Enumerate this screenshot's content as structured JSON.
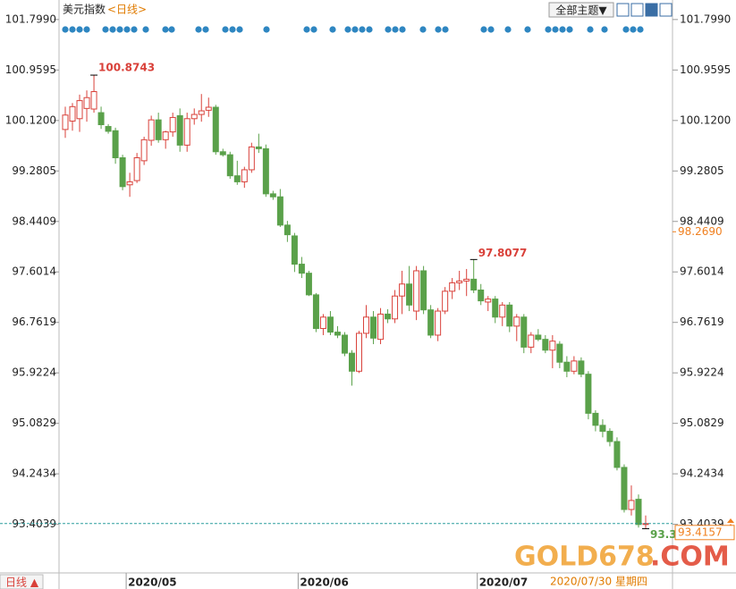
{
  "chart_data": {
    "type": "candlestick",
    "title": "美元指数",
    "subtitle": "<日线>",
    "categories": [
      null,
      null,
      null,
      null,
      null,
      null,
      null,
      null,
      null,
      "2020/05",
      null,
      null,
      null,
      null,
      null,
      null,
      null,
      null,
      null,
      null,
      null,
      null,
      null,
      null,
      null,
      null,
      null,
      null,
      null,
      null,
      null,
      null,
      null,
      "2020/06",
      null,
      null,
      null,
      null,
      null,
      null,
      null,
      null,
      null,
      null,
      null,
      null,
      null,
      null,
      null,
      null,
      null,
      null,
      null,
      null,
      null,
      null,
      null,
      null,
      "2020/07",
      null,
      null,
      null,
      null,
      null,
      null,
      null,
      null,
      null,
      null,
      null,
      null,
      null,
      null,
      null,
      null,
      null,
      null,
      null,
      null,
      null,
      null,
      null
    ],
    "open": [
      99.97,
      100.11,
      100.15,
      100.32,
      100.31,
      100.25,
      100.02,
      99.95,
      99.5,
      99.05,
      99.12,
      99.45,
      99.79,
      100.13,
      99.8,
      99.93,
      100.2,
      99.71,
      100.15,
      100.22,
      100.29,
      100.34,
      99.6,
      99.55,
      99.2,
      99.1,
      99.3,
      99.68,
      99.65,
      98.9,
      98.85,
      98.38,
      98.2,
      97.73,
      97.58,
      97.22,
      96.66,
      96.85,
      96.6,
      96.55,
      96.25,
      95.95,
      96.58,
      96.85,
      96.48,
      96.9,
      96.82,
      97.2,
      97.4,
      96.95,
      97.62,
      96.97,
      96.55,
      96.95,
      97.28,
      97.42,
      97.45,
      97.48,
      97.3,
      97.1,
      97.15,
      96.85,
      97.05,
      96.7,
      96.85,
      96.35,
      96.55,
      96.48,
      96.3,
      96.4,
      96.1,
      95.95,
      96.12,
      95.9,
      95.25,
      95.05,
      94.95,
      94.78,
      94.35,
      93.65,
      93.82,
      93.4
    ],
    "high": [
      100.35,
      100.41,
      100.55,
      100.62,
      100.8743,
      100.35,
      100.06,
      100.0,
      99.55,
      99.25,
      99.58,
      99.85,
      100.2,
      100.25,
      99.95,
      100.25,
      100.32,
      100.25,
      100.32,
      100.56,
      100.5,
      100.38,
      99.65,
      99.6,
      99.45,
      99.35,
      99.75,
      99.9,
      99.72,
      98.95,
      98.98,
      98.45,
      98.25,
      97.85,
      97.62,
      97.25,
      96.9,
      96.95,
      96.7,
      96.6,
      96.3,
      96.62,
      97.05,
      96.95,
      97.0,
      96.98,
      97.3,
      97.62,
      97.7,
      97.7,
      97.7,
      97.05,
      97.0,
      97.35,
      97.5,
      97.62,
      97.65,
      97.8077,
      97.4,
      97.2,
      97.2,
      97.1,
      97.1,
      96.9,
      96.9,
      96.6,
      96.65,
      96.55,
      96.55,
      96.45,
      96.2,
      96.2,
      96.18,
      95.95,
      95.3,
      95.15,
      95.0,
      94.85,
      94.4,
      94.05,
      93.9,
      93.55
    ],
    "low": [
      99.83,
      99.95,
      99.93,
      100.1,
      100.25,
      99.98,
      99.9,
      99.4,
      98.96,
      98.85,
      99.08,
      99.38,
      99.7,
      99.75,
      99.65,
      99.85,
      99.6,
      99.6,
      100.05,
      100.1,
      100.18,
      99.55,
      99.52,
      99.15,
      99.05,
      99.0,
      99.25,
      99.58,
      98.85,
      98.8,
      98.35,
      98.1,
      97.6,
      97.5,
      97.2,
      96.6,
      96.55,
      96.55,
      96.5,
      96.2,
      95.7097,
      95.92,
      96.5,
      96.4,
      96.4,
      96.75,
      96.75,
      96.9,
      96.95,
      96.8,
      96.9,
      96.5,
      96.45,
      96.9,
      97.15,
      97.3,
      97.2,
      97.25,
      97.05,
      96.95,
      96.75,
      96.7,
      96.6,
      96.45,
      96.25,
      96.25,
      96.45,
      96.25,
      96.0,
      96.0,
      95.85,
      95.9,
      95.85,
      95.15,
      94.95,
      94.85,
      94.7,
      94.3,
      93.6,
      93.55,
      93.35,
      93.33
    ],
    "close": [
      100.21,
      100.35,
      100.45,
      100.5,
      100.6,
      100.05,
      99.94,
      99.5,
      99.02,
      99.1,
      99.5,
      99.8,
      100.13,
      99.8,
      99.93,
      100.17,
      99.71,
      100.15,
      100.22,
      100.28,
      100.34,
      99.6,
      99.55,
      99.2,
      99.1,
      99.3,
      99.68,
      99.65,
      98.9,
      98.85,
      98.38,
      98.22,
      97.73,
      97.58,
      97.22,
      96.66,
      96.85,
      96.6,
      96.55,
      96.25,
      95.95,
      96.58,
      96.85,
      96.5,
      96.9,
      96.82,
      97.2,
      97.4,
      97.05,
      97.62,
      96.97,
      96.55,
      96.95,
      97.28,
      97.42,
      97.45,
      97.48,
      97.3,
      97.12,
      97.15,
      96.85,
      97.05,
      96.7,
      96.85,
      96.35,
      96.55,
      96.48,
      96.3,
      96.45,
      96.1,
      95.95,
      96.12,
      95.9,
      95.25,
      95.05,
      94.95,
      94.78,
      94.35,
      93.65,
      93.8,
      93.4,
      93.4157
    ],
    "up_color": "#d9413a",
    "down_color": "#5aa14a",
    "ylim": [
      92.61,
      101.99
    ],
    "yticks": [
      {
        "value": 101.799,
        "label": "101.7990"
      },
      100.9595,
      {
        "value": 100.12,
        "label": "100.1200"
      },
      99.2805,
      98.4409,
      97.6014,
      96.7619,
      95.9224,
      95.0829,
      94.2434,
      93.4039
    ],
    "marker": {
      "value": 98.269,
      "label": "98.2690"
    }
  },
  "ui": {
    "menu": "全部主题▼",
    "period_button": "日线 ▲",
    "date_label": "2020/07/30 星期四",
    "watermark": [
      "GOLD678",
      ".COM"
    ]
  }
}
